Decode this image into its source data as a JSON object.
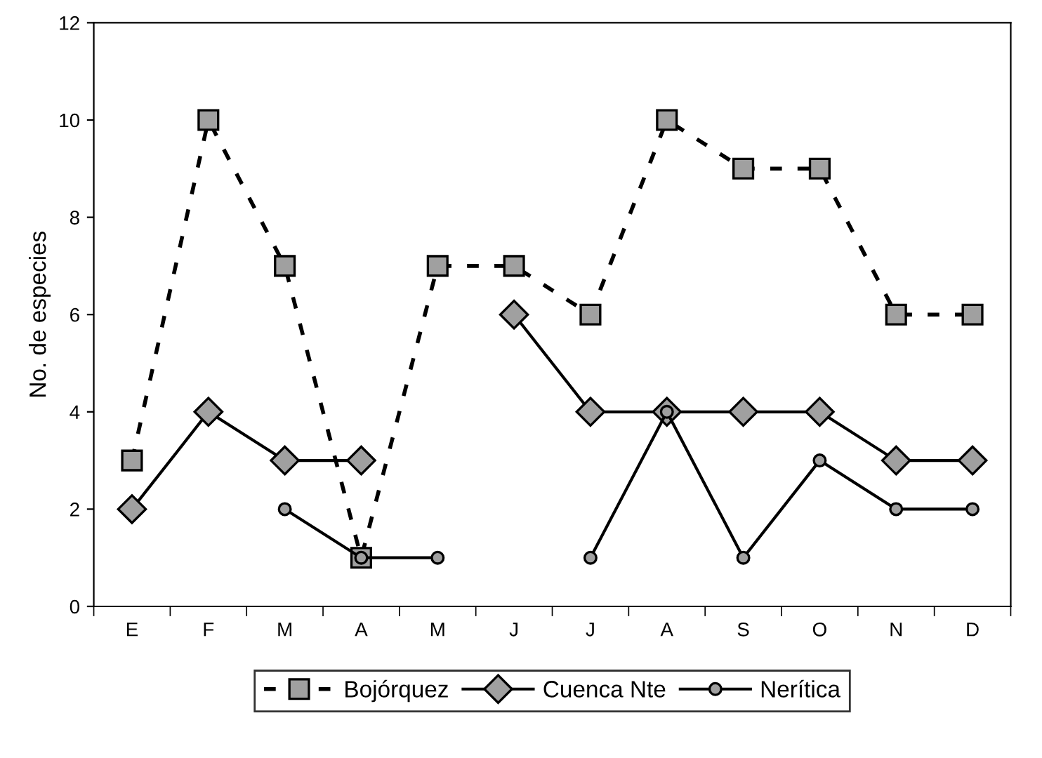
{
  "chart_data": {
    "type": "line",
    "ylabel": "No. de especies",
    "categories": [
      "E",
      "F",
      "M",
      "A",
      "M",
      "J",
      "J",
      "A",
      "S",
      "O",
      "N",
      "D"
    ],
    "series": [
      {
        "name": "Bojórquez",
        "color": "#000000",
        "marker": "square",
        "line_style": "dashed",
        "values": [
          3,
          10,
          7,
          1,
          7,
          7,
          6,
          10,
          9,
          9,
          6,
          6
        ]
      },
      {
        "name": "Cuenca Nte",
        "color": "#000000",
        "marker": "diamond",
        "line_style": "solid",
        "values": [
          2,
          4,
          3,
          3,
          null,
          6,
          4,
          4,
          4,
          4,
          3,
          3
        ]
      },
      {
        "name": "Nerítica",
        "color": "#000000",
        "marker": "circle",
        "line_style": "solid",
        "values": [
          null,
          null,
          2,
          1,
          1,
          null,
          1,
          4,
          1,
          3,
          2,
          2
        ]
      }
    ],
    "ylim": [
      0,
      12
    ],
    "yticks": [
      0,
      2,
      4,
      6,
      8,
      10,
      12
    ],
    "grid": false,
    "legend": "bottom"
  }
}
